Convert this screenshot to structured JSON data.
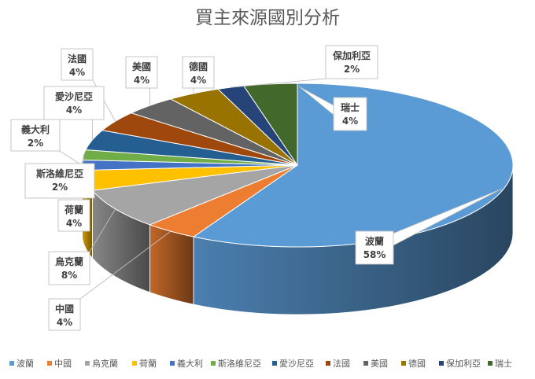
{
  "chart_data": {
    "type": "pie",
    "title": "買主來源國別分析",
    "unit": "%",
    "slices": [
      {
        "name": "波蘭",
        "value": 58,
        "label": "58%",
        "color": "#5b9bd5"
      },
      {
        "name": "中國",
        "value": 4,
        "label": "4%",
        "color": "#ed7d31"
      },
      {
        "name": "烏克蘭",
        "value": 8,
        "label": "8%",
        "color": "#a5a5a5"
      },
      {
        "name": "荷蘭",
        "value": 4,
        "label": "4%",
        "color": "#ffc000"
      },
      {
        "name": "義大利",
        "value": 2,
        "label": "2%",
        "color": "#4472c4"
      },
      {
        "name": "斯洛維尼亞",
        "value": 2,
        "label": "2%",
        "color": "#70ad47"
      },
      {
        "name": "愛沙尼亞",
        "value": 4,
        "label": "4%",
        "color": "#255e91"
      },
      {
        "name": "法國",
        "value": 4,
        "label": "4%",
        "color": "#9e480e"
      },
      {
        "name": "美國",
        "value": 4,
        "label": "4%",
        "color": "#636363"
      },
      {
        "name": "德國",
        "value": 4,
        "label": "4%",
        "color": "#997300"
      },
      {
        "name": "保加利亞",
        "value": 2,
        "label": "2%",
        "color": "#264478"
      },
      {
        "name": "瑞士",
        "value": 4,
        "label": "4%",
        "color": "#43682b"
      }
    ],
    "legend_position": "bottom",
    "style": "3d-pie"
  }
}
